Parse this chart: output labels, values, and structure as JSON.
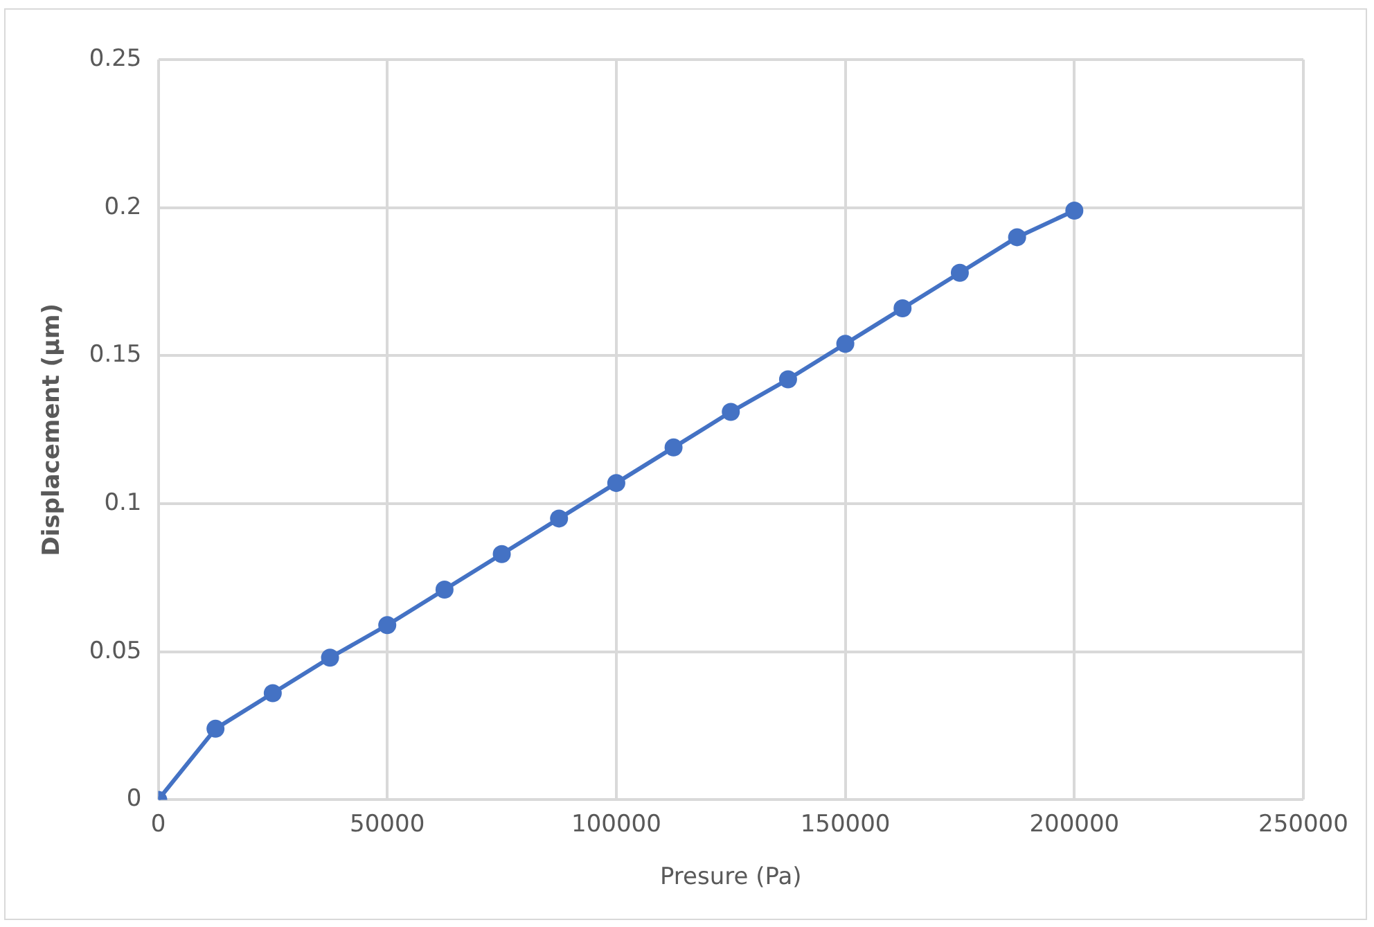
{
  "chart_data": {
    "type": "line",
    "xlabel": "Presure (Pa)",
    "ylabel": "Displacement (µm)",
    "x": [
      0,
      12500,
      25000,
      37500,
      50000,
      62500,
      75000,
      87500,
      100000,
      112500,
      125000,
      137500,
      150000,
      162500,
      175000,
      187500,
      200000
    ],
    "series": [
      {
        "color": "#4472c4",
        "values": [
          0,
          0.024,
          0.036,
          0.048,
          0.059,
          0.071,
          0.083,
          0.095,
          0.107,
          0.119,
          0.131,
          0.142,
          0.154,
          0.166,
          0.178,
          0.19,
          0.199
        ]
      }
    ],
    "xlim": [
      0,
      250000
    ],
    "xticks": [
      0,
      50000,
      100000,
      150000,
      200000,
      250000
    ],
    "ylim": [
      0,
      0.25
    ],
    "yticks": [
      0,
      0.05,
      0.1,
      0.15,
      0.2,
      0.25
    ],
    "grid": true,
    "legend": false,
    "marker": "circle",
    "line_style": "solid"
  }
}
